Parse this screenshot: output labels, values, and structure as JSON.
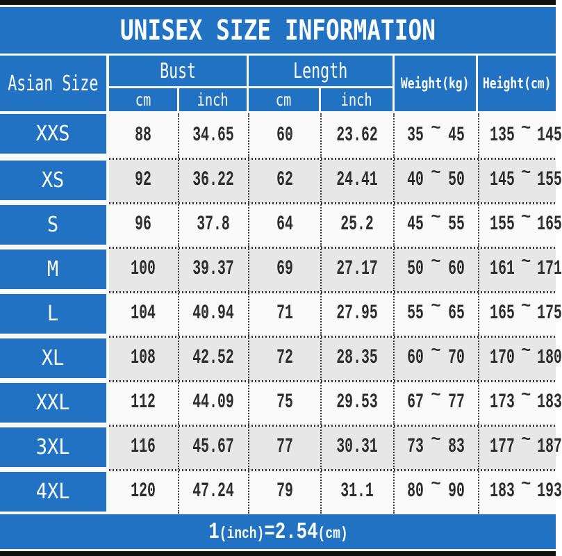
{
  "title": "UNISEX SIZE INFORMATION",
  "header": {
    "corner": "Asian Size",
    "bust": "Bust",
    "length": "Length",
    "cm": "cm",
    "inch": "inch",
    "weight": "Weight(kg)",
    "height": "Height(cm)"
  },
  "tilde": "~",
  "footer": {
    "big1": "1",
    "small1": "(inch)",
    "big2": "=2.54",
    "small2": "(cm)"
  },
  "colors": {
    "banner_blue": "#2272c3",
    "row_shade": "#e8e7e7",
    "top_bottom_bar": "#111111",
    "value_text": "#2d2d2d",
    "header_text": "#ffffff"
  },
  "chart_data": {
    "type": "table",
    "title": "UNISEX SIZE INFORMATION",
    "columns": [
      "Asian Size",
      "Bust cm",
      "Bust inch",
      "Length cm",
      "Length inch",
      "Weight min (kg)",
      "Weight max (kg)",
      "Height min (cm)",
      "Height max (cm)"
    ],
    "rows": [
      [
        "XXS",
        "88",
        "34.65",
        "60",
        "23.62",
        "35",
        "45",
        "135",
        "145"
      ],
      [
        "XS",
        "92",
        "36.22",
        "62",
        "24.41",
        "40",
        "50",
        "145",
        "155"
      ],
      [
        "S",
        "96",
        "37.8",
        "64",
        "25.2",
        "45",
        "55",
        "155",
        "165"
      ],
      [
        "M",
        "100",
        "39.37",
        "69",
        "27.17",
        "50",
        "60",
        "161",
        "171"
      ],
      [
        "L",
        "104",
        "40.94",
        "71",
        "27.95",
        "55",
        "65",
        "165",
        "175"
      ],
      [
        "XL",
        "108",
        "42.52",
        "72",
        "28.35",
        "60",
        "70",
        "170",
        "180"
      ],
      [
        "XXL",
        "112",
        "44.09",
        "75",
        "29.53",
        "67",
        "77",
        "173",
        "183"
      ],
      [
        "3XL",
        "116",
        "45.67",
        "77",
        "30.31",
        "73",
        "83",
        "177",
        "187"
      ],
      [
        "4XL",
        "120",
        "47.24",
        "79",
        "31.1",
        "80",
        "90",
        "183",
        "193"
      ]
    ],
    "note": "1(inch)=2.54(cm)"
  }
}
